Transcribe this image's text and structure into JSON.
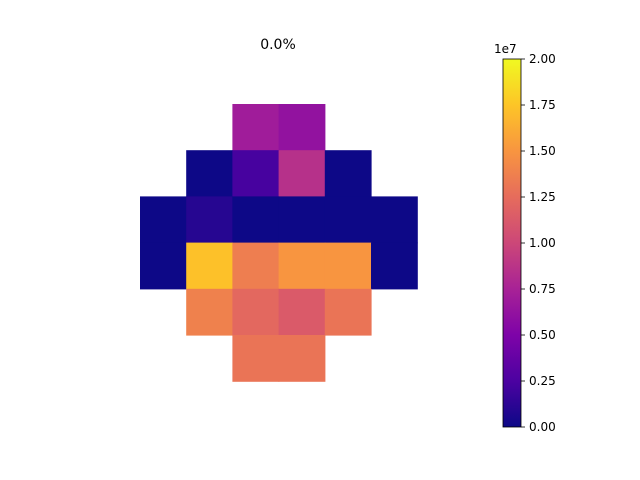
{
  "chart_data": {
    "type": "heatmap",
    "title": "0.0%",
    "colormap": "plasma",
    "grid": false,
    "axes_visible": false,
    "nrows": 6,
    "ncols": 6,
    "cells": [
      {
        "row": 0,
        "col": 2,
        "value": 7000000
      },
      {
        "row": 0,
        "col": 3,
        "value": 6200000
      },
      {
        "row": 1,
        "col": 1,
        "value": 0
      },
      {
        "row": 1,
        "col": 2,
        "value": 2300000
      },
      {
        "row": 1,
        "col": 3,
        "value": 8500000
      },
      {
        "row": 1,
        "col": 4,
        "value": 0
      },
      {
        "row": 2,
        "col": 0,
        "value": 0
      },
      {
        "row": 2,
        "col": 1,
        "value": 1000000
      },
      {
        "row": 2,
        "col": 2,
        "value": 0
      },
      {
        "row": 2,
        "col": 3,
        "value": 0
      },
      {
        "row": 2,
        "col": 4,
        "value": 0
      },
      {
        "row": 2,
        "col": 5,
        "value": 0
      },
      {
        "row": 3,
        "col": 0,
        "value": 0
      },
      {
        "row": 3,
        "col": 1,
        "value": 17300000
      },
      {
        "row": 3,
        "col": 2,
        "value": 13600000
      },
      {
        "row": 3,
        "col": 3,
        "value": 15000000
      },
      {
        "row": 3,
        "col": 4,
        "value": 15000000
      },
      {
        "row": 3,
        "col": 5,
        "value": 0
      },
      {
        "row": 4,
        "col": 1,
        "value": 13800000
      },
      {
        "row": 4,
        "col": 2,
        "value": 12200000
      },
      {
        "row": 4,
        "col": 3,
        "value": 11300000
      },
      {
        "row": 4,
        "col": 4,
        "value": 13000000
      },
      {
        "row": 5,
        "col": 2,
        "value": 13000000
      },
      {
        "row": 5,
        "col": 3,
        "value": 13000000
      }
    ],
    "colorbar": {
      "range": [
        0,
        20000000
      ],
      "ticks": [
        0,
        2500000,
        5000000,
        7500000,
        10000000,
        12500000,
        15000000,
        17500000,
        20000000
      ],
      "tick_labels": [
        "0.00",
        "0.25",
        "0.50",
        "0.75",
        "1.00",
        "1.25",
        "1.50",
        "1.75",
        "2.00"
      ],
      "offset_label": "1e7"
    }
  }
}
